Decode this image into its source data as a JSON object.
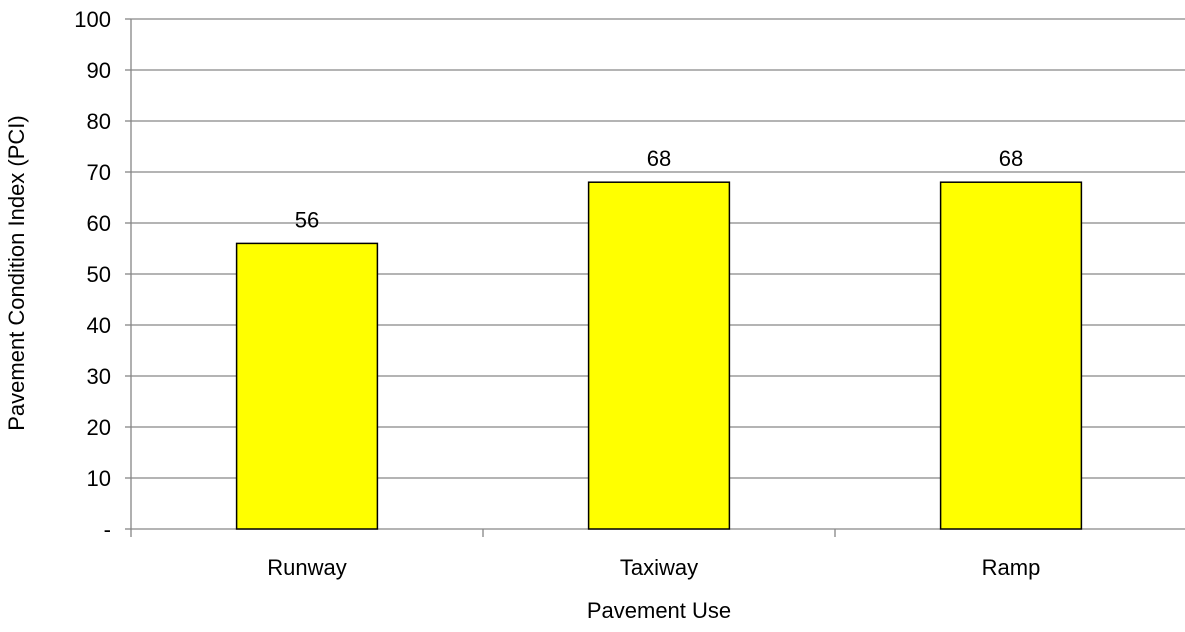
{
  "chart_data": {
    "type": "bar",
    "categories": [
      "Runway",
      "Taxiway",
      "Ramp"
    ],
    "series": [
      {
        "values": [
          56,
          68,
          68
        ],
        "color": "#FFFF00"
      }
    ],
    "data_labels": [
      "56",
      "68",
      "68"
    ],
    "xlabel": "Pavement Use",
    "ylabel": "Pavement Condition Index (PCI)",
    "ylim": [
      0,
      100
    ],
    "yticks": [
      0,
      10,
      20,
      30,
      40,
      50,
      60,
      70,
      80,
      90,
      100
    ],
    "ytick_labels": [
      "-",
      "10",
      "20",
      "30",
      "40",
      "50",
      "60",
      "70",
      "80",
      "90",
      "100"
    ],
    "grid": true,
    "legend": "none",
    "colors": {
      "bar_fill": "#FFFF00",
      "bar_stroke": "#000000",
      "grid": "#868686"
    }
  }
}
